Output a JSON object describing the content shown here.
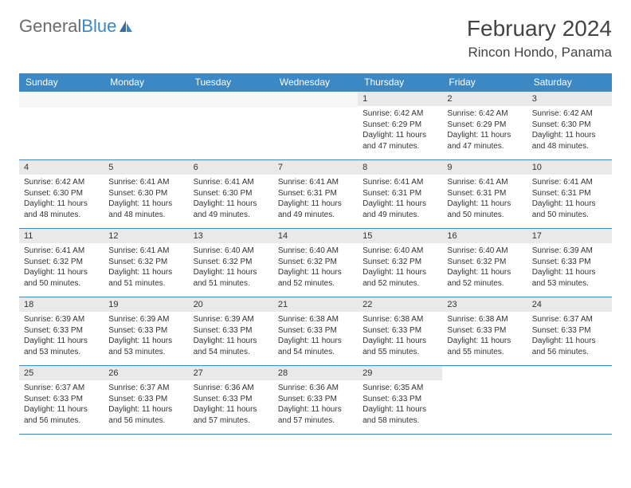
{
  "logo": {
    "text1": "General",
    "text2": "Blue",
    "color_general": "#6b6b6b",
    "color_blue": "#3b88c4"
  },
  "title": "February 2024",
  "location": "Rincon Hondo, Panama",
  "colors": {
    "header_bg": "#3b88c4",
    "daynum_bg": "#e9e9e9",
    "border": "#3b88c4",
    "text": "#333333"
  },
  "daynames": [
    "Sunday",
    "Monday",
    "Tuesday",
    "Wednesday",
    "Thursday",
    "Friday",
    "Saturday"
  ],
  "weeks": [
    [
      null,
      null,
      null,
      null,
      {
        "n": "1",
        "sr": "Sunrise: 6:42 AM",
        "ss": "Sunset: 6:29 PM",
        "dl": "Daylight: 11 hours and 47 minutes."
      },
      {
        "n": "2",
        "sr": "Sunrise: 6:42 AM",
        "ss": "Sunset: 6:29 PM",
        "dl": "Daylight: 11 hours and 47 minutes."
      },
      {
        "n": "3",
        "sr": "Sunrise: 6:42 AM",
        "ss": "Sunset: 6:30 PM",
        "dl": "Daylight: 11 hours and 48 minutes."
      }
    ],
    [
      {
        "n": "4",
        "sr": "Sunrise: 6:42 AM",
        "ss": "Sunset: 6:30 PM",
        "dl": "Daylight: 11 hours and 48 minutes."
      },
      {
        "n": "5",
        "sr": "Sunrise: 6:41 AM",
        "ss": "Sunset: 6:30 PM",
        "dl": "Daylight: 11 hours and 48 minutes."
      },
      {
        "n": "6",
        "sr": "Sunrise: 6:41 AM",
        "ss": "Sunset: 6:30 PM",
        "dl": "Daylight: 11 hours and 49 minutes."
      },
      {
        "n": "7",
        "sr": "Sunrise: 6:41 AM",
        "ss": "Sunset: 6:31 PM",
        "dl": "Daylight: 11 hours and 49 minutes."
      },
      {
        "n": "8",
        "sr": "Sunrise: 6:41 AM",
        "ss": "Sunset: 6:31 PM",
        "dl": "Daylight: 11 hours and 49 minutes."
      },
      {
        "n": "9",
        "sr": "Sunrise: 6:41 AM",
        "ss": "Sunset: 6:31 PM",
        "dl": "Daylight: 11 hours and 50 minutes."
      },
      {
        "n": "10",
        "sr": "Sunrise: 6:41 AM",
        "ss": "Sunset: 6:31 PM",
        "dl": "Daylight: 11 hours and 50 minutes."
      }
    ],
    [
      {
        "n": "11",
        "sr": "Sunrise: 6:41 AM",
        "ss": "Sunset: 6:32 PM",
        "dl": "Daylight: 11 hours and 50 minutes."
      },
      {
        "n": "12",
        "sr": "Sunrise: 6:41 AM",
        "ss": "Sunset: 6:32 PM",
        "dl": "Daylight: 11 hours and 51 minutes."
      },
      {
        "n": "13",
        "sr": "Sunrise: 6:40 AM",
        "ss": "Sunset: 6:32 PM",
        "dl": "Daylight: 11 hours and 51 minutes."
      },
      {
        "n": "14",
        "sr": "Sunrise: 6:40 AM",
        "ss": "Sunset: 6:32 PM",
        "dl": "Daylight: 11 hours and 52 minutes."
      },
      {
        "n": "15",
        "sr": "Sunrise: 6:40 AM",
        "ss": "Sunset: 6:32 PM",
        "dl": "Daylight: 11 hours and 52 minutes."
      },
      {
        "n": "16",
        "sr": "Sunrise: 6:40 AM",
        "ss": "Sunset: 6:32 PM",
        "dl": "Daylight: 11 hours and 52 minutes."
      },
      {
        "n": "17",
        "sr": "Sunrise: 6:39 AM",
        "ss": "Sunset: 6:33 PM",
        "dl": "Daylight: 11 hours and 53 minutes."
      }
    ],
    [
      {
        "n": "18",
        "sr": "Sunrise: 6:39 AM",
        "ss": "Sunset: 6:33 PM",
        "dl": "Daylight: 11 hours and 53 minutes."
      },
      {
        "n": "19",
        "sr": "Sunrise: 6:39 AM",
        "ss": "Sunset: 6:33 PM",
        "dl": "Daylight: 11 hours and 53 minutes."
      },
      {
        "n": "20",
        "sr": "Sunrise: 6:39 AM",
        "ss": "Sunset: 6:33 PM",
        "dl": "Daylight: 11 hours and 54 minutes."
      },
      {
        "n": "21",
        "sr": "Sunrise: 6:38 AM",
        "ss": "Sunset: 6:33 PM",
        "dl": "Daylight: 11 hours and 54 minutes."
      },
      {
        "n": "22",
        "sr": "Sunrise: 6:38 AM",
        "ss": "Sunset: 6:33 PM",
        "dl": "Daylight: 11 hours and 55 minutes."
      },
      {
        "n": "23",
        "sr": "Sunrise: 6:38 AM",
        "ss": "Sunset: 6:33 PM",
        "dl": "Daylight: 11 hours and 55 minutes."
      },
      {
        "n": "24",
        "sr": "Sunrise: 6:37 AM",
        "ss": "Sunset: 6:33 PM",
        "dl": "Daylight: 11 hours and 56 minutes."
      }
    ],
    [
      {
        "n": "25",
        "sr": "Sunrise: 6:37 AM",
        "ss": "Sunset: 6:33 PM",
        "dl": "Daylight: 11 hours and 56 minutes."
      },
      {
        "n": "26",
        "sr": "Sunrise: 6:37 AM",
        "ss": "Sunset: 6:33 PM",
        "dl": "Daylight: 11 hours and 56 minutes."
      },
      {
        "n": "27",
        "sr": "Sunrise: 6:36 AM",
        "ss": "Sunset: 6:33 PM",
        "dl": "Daylight: 11 hours and 57 minutes."
      },
      {
        "n": "28",
        "sr": "Sunrise: 6:36 AM",
        "ss": "Sunset: 6:33 PM",
        "dl": "Daylight: 11 hours and 57 minutes."
      },
      {
        "n": "29",
        "sr": "Sunrise: 6:35 AM",
        "ss": "Sunset: 6:33 PM",
        "dl": "Daylight: 11 hours and 58 minutes."
      },
      null,
      null
    ]
  ]
}
